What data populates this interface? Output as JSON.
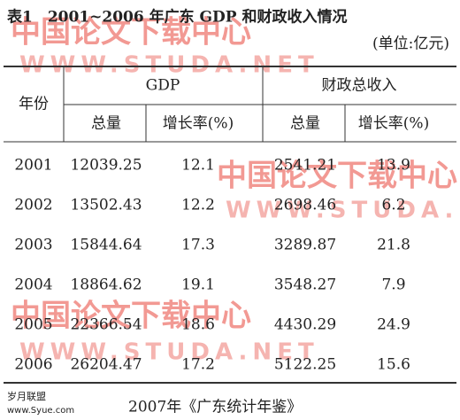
{
  "title": "表1　2001~2006 年广东 GDP 和财政收入情况",
  "unit": "(单位:亿元)",
  "table": {
    "header": {
      "year": "年份",
      "gdp": "GDP",
      "fiscal": "财政总收入",
      "sub": [
        "总量",
        "增长率(%)",
        "总量",
        "增长率(%)"
      ]
    },
    "rows": [
      [
        "2001",
        "12039.25",
        "12.1",
        "2541.21",
        "13.9"
      ],
      [
        "2002",
        "13502.43",
        "12.2",
        "2698.46",
        "6.2"
      ],
      [
        "2003",
        "15844.64",
        "17.3",
        "3289.87",
        "21.8"
      ],
      [
        "2004",
        "18864.62",
        "19.1",
        "3548.27",
        "7.9"
      ],
      [
        "2005",
        "22366.54",
        "18.6",
        "4430.29",
        "24.9"
      ],
      [
        "2006",
        "26204.47",
        "17.2",
        "5122.25",
        "15.6"
      ]
    ]
  },
  "source": "2007年《广东统计年鉴》",
  "logo": {
    "name": "岁月联盟",
    "url": "www.Syue.com"
  },
  "watermarks": [
    {
      "name": "中国论文下载中心",
      "url": "WWW.STUDA.NET"
    },
    {
      "name": "中国论文下载中心",
      "url": "WWW.STUDA.NET"
    },
    {
      "name": "中国论文下载中心",
      "url": "WWW.STUDA.NET"
    }
  ]
}
